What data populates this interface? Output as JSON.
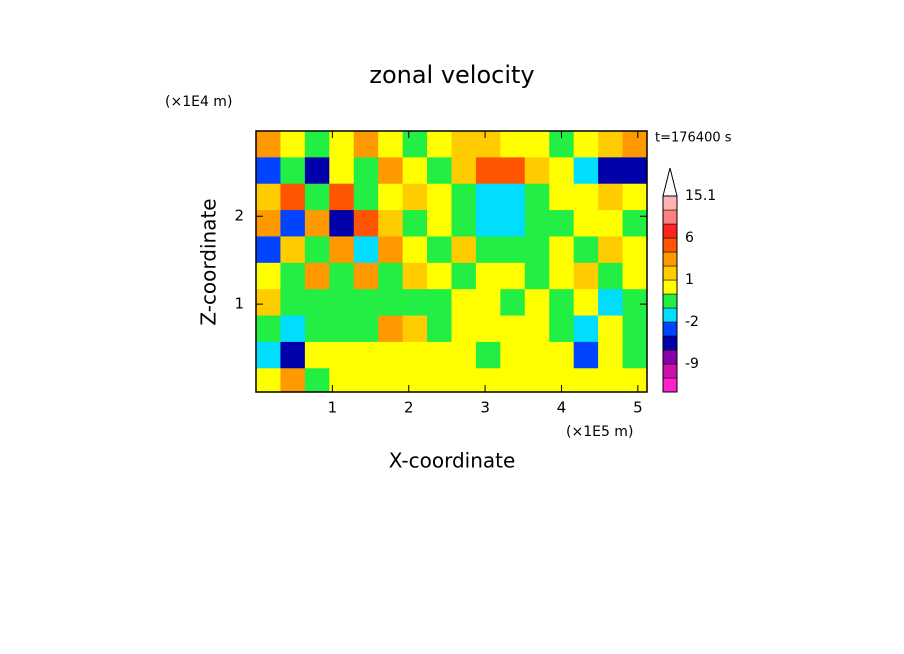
{
  "chart_data": {
    "type": "contour",
    "title": "zonal velocity",
    "y_unit": "(×1E4 m)",
    "x_unit": "(×1E5 m)",
    "time_label": "t=176400 s",
    "xlabel": "X-coordinate",
    "ylabel": "Z-coordinate",
    "xlim": [
      0,
      5.12
    ],
    "ylim": [
      0,
      2.97
    ],
    "xticks": [
      1,
      2,
      3,
      4,
      5
    ],
    "yticks": [
      1,
      2
    ],
    "x": [
      0.16,
      0.48,
      0.8,
      1.12,
      1.44,
      1.76,
      2.08,
      2.4,
      2.72,
      3.04,
      3.36,
      3.68,
      4.0,
      4.32,
      4.64,
      4.96
    ],
    "y": [
      2.82,
      2.52,
      2.22,
      1.92,
      1.62,
      1.32,
      1.02,
      0.72,
      0.42,
      0.12
    ],
    "z": [
      [
        2.5,
        0.5,
        -0.5,
        0.5,
        2.5,
        0.5,
        -0.5,
        0.5,
        1.5,
        1.5,
        0.5,
        0.5,
        -0.5,
        0.5,
        1.5,
        2.5
      ],
      [
        -2.5,
        -0.5,
        -4,
        0.5,
        -0.5,
        2.5,
        0.5,
        -0.5,
        1.5,
        4,
        4,
        1.5,
        0.5,
        -1.5,
        -4,
        -4
      ],
      [
        1.5,
        4,
        -0.5,
        4,
        -0.5,
        0.5,
        1.5,
        0.5,
        -0.5,
        -1.5,
        -1.5,
        -0.5,
        0.5,
        0.5,
        1.5,
        0.5
      ],
      [
        2.5,
        -2.5,
        2.5,
        -4,
        4,
        1.5,
        -0.5,
        0.5,
        -0.5,
        -1.5,
        -1.5,
        -0.5,
        -0.5,
        0.5,
        0.5,
        -0.5
      ],
      [
        -2.5,
        1.5,
        -0.5,
        2.5,
        -1.5,
        2.5,
        0.5,
        -0.5,
        1.5,
        -0.5,
        -0.5,
        -0.5,
        0.5,
        -0.5,
        1.5,
        0.5
      ],
      [
        0.5,
        -0.5,
        2.5,
        -0.5,
        2.5,
        -0.5,
        1.5,
        0.5,
        -0.5,
        0.5,
        0.5,
        -0.5,
        0.5,
        1.5,
        -0.5,
        0.5
      ],
      [
        1.5,
        -0.5,
        -0.5,
        -0.5,
        -0.5,
        -0.5,
        -0.5,
        -0.5,
        0.5,
        0.5,
        -0.5,
        0.5,
        -0.5,
        0.5,
        -1.5,
        -0.5
      ],
      [
        -0.5,
        -1.5,
        -0.5,
        -0.5,
        -0.5,
        2.5,
        1.5,
        -0.5,
        0.5,
        0.5,
        0.5,
        0.5,
        -0.5,
        -1.5,
        0.5,
        -0.5
      ],
      [
        -1.5,
        -4,
        0.5,
        0.5,
        0.5,
        0.5,
        0.5,
        0.5,
        0.5,
        -0.5,
        0.5,
        0.5,
        0.5,
        -2.5,
        0.5,
        -0.5
      ],
      [
        0.5,
        2.5,
        -0.5,
        0.5,
        0.5,
        0.5,
        0.5,
        0.5,
        0.5,
        0.5,
        0.5,
        0.5,
        0.5,
        0.5,
        0.5,
        0.5
      ]
    ],
    "colorbar": {
      "bounds": [
        -15,
        -12,
        -9,
        -6,
        -3,
        -2,
        -1,
        0,
        1,
        2,
        3,
        6,
        9,
        12,
        15.1
      ],
      "colors": [
        "#ff22cc",
        "#cc11aa",
        "#8800aa",
        "#0000aa",
        "#0044ff",
        "#00ddff",
        "#22ee44",
        "#ffff00",
        "#ffcc00",
        "#ff9900",
        "#ff5500",
        "#ff2222",
        "#ff8080",
        "#ffb4b4"
      ],
      "ticks": [
        15.1,
        6,
        1,
        -2,
        -9
      ]
    }
  }
}
